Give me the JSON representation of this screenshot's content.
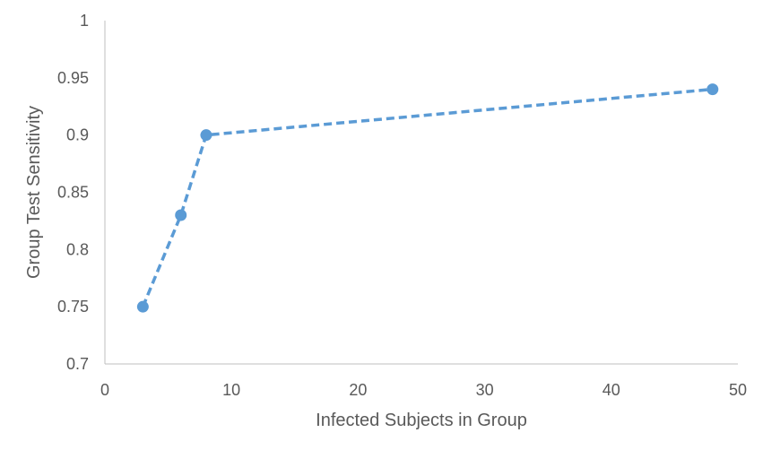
{
  "chart_data": {
    "type": "line",
    "title": "",
    "xlabel": "Infected Subjects in Group",
    "ylabel": "Group Test Sensitivity",
    "xlim": [
      0,
      50
    ],
    "ylim": [
      0.7,
      1
    ],
    "x_ticks": [
      0,
      10,
      20,
      30,
      40,
      50
    ],
    "y_ticks": [
      0.7,
      0.75,
      0.8,
      0.85,
      0.9,
      0.95,
      1
    ],
    "x_tick_labels": [
      "0",
      "10",
      "20",
      "30",
      "40",
      "50"
    ],
    "y_tick_labels": [
      "0.7",
      "0.75",
      "0.8",
      "0.85",
      "0.9",
      "0.95",
      "1"
    ],
    "grid": false,
    "legend": "none",
    "line_style": "dashed",
    "marker": "circle",
    "series_color": "#5b9bd5",
    "axis_color": "#bfbfbf",
    "text_color": "#595959",
    "series": [
      {
        "x": [
          3,
          6,
          8,
          48
        ],
        "y": [
          0.75,
          0.83,
          0.9,
          0.94
        ]
      }
    ]
  }
}
